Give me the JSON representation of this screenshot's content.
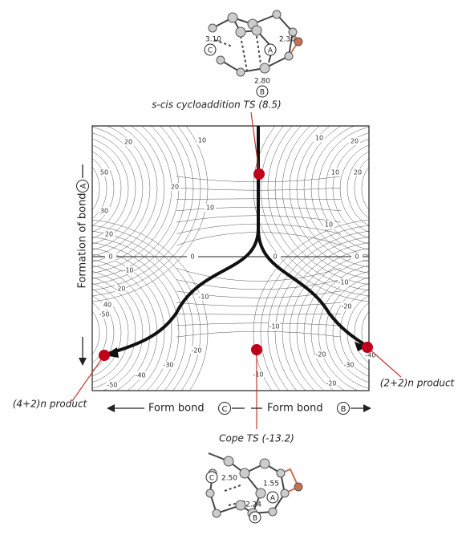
{
  "annotations": {
    "scis_ts": "s-cis cycloaddition TS (8.5)",
    "cope_ts": "Cope TS (-13.2)",
    "product_4_2": "(4+2)n product",
    "product_2_2": "(2+2)n product"
  },
  "axes": {
    "x_left": "Form bond",
    "x_left_circle": "C",
    "x_right": "Form bond",
    "x_right_circle": "B",
    "y": "Formation of bond",
    "y_circle": "A"
  },
  "molecules": {
    "top": {
      "labels": [
        "3.10",
        "C",
        "2.30",
        "A",
        "2.80",
        "B"
      ]
    },
    "bottom": {
      "labels": [
        "C",
        "2.50",
        "1.55",
        "A",
        "2.24",
        "B"
      ]
    }
  },
  "contour_labels": [
    "10",
    "10",
    "20",
    "20",
    "50",
    "10",
    "20",
    "20",
    "30",
    "10",
    "10",
    "20",
    "0",
    "0",
    "0",
    "0",
    "-10",
    "-20",
    "40",
    "-50",
    "-10",
    "-10",
    "-20",
    "-10",
    "-20",
    "-30",
    "-20",
    "-30",
    "-40",
    "-10",
    "-40",
    "-50",
    "-20"
  ]
}
